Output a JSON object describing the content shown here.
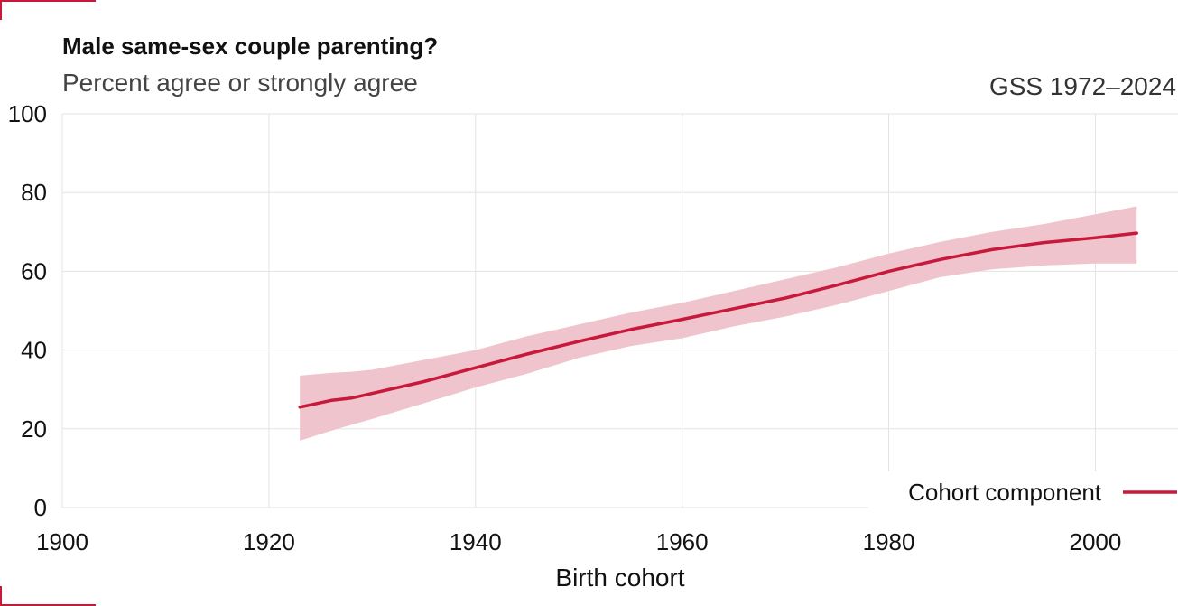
{
  "header": {
    "title": "Male same-sex couple parenting?",
    "subtitle": "Percent agree or strongly agree",
    "source": "GSS 1972–2024"
  },
  "colors": {
    "line": "#c8193c",
    "band": "#f0c4cc",
    "grid": "#e3e3e3"
  },
  "chart_data": {
    "type": "line",
    "title": "Male same-sex couple parenting?",
    "subtitle": "Percent agree or strongly agree",
    "xlabel": "Birth cohort",
    "ylabel": "",
    "xlim": [
      1900,
      2008
    ],
    "ylim": [
      0,
      100
    ],
    "x_ticks": [
      1900,
      1920,
      1940,
      1960,
      1980,
      2000
    ],
    "y_ticks": [
      0,
      20,
      40,
      60,
      80,
      100
    ],
    "grid": true,
    "legend_position": "bottom-right",
    "series": [
      {
        "name": "Cohort component",
        "x": [
          1923,
          1926,
          1928,
          1930,
          1935,
          1940,
          1945,
          1950,
          1955,
          1960,
          1965,
          1970,
          1975,
          1980,
          1985,
          1990,
          1995,
          2000,
          2004
        ],
        "y": [
          25.5,
          27.2,
          27.8,
          29.0,
          32.0,
          35.5,
          39.0,
          42.2,
          45.2,
          47.8,
          50.5,
          53.2,
          56.5,
          60.0,
          63.0,
          65.5,
          67.3,
          68.5,
          69.7
        ],
        "lower": [
          17.0,
          19.5,
          21.0,
          22.5,
          26.5,
          30.5,
          34.0,
          38.0,
          41.0,
          43.0,
          46.0,
          48.5,
          51.5,
          55.0,
          58.5,
          60.5,
          61.5,
          62.0,
          62.0
        ],
        "upper": [
          33.5,
          34.2,
          34.5,
          35.0,
          37.5,
          40.0,
          43.5,
          46.5,
          49.5,
          52.0,
          55.0,
          58.0,
          61.0,
          64.5,
          67.5,
          70.0,
          72.0,
          74.5,
          76.5
        ]
      }
    ]
  }
}
